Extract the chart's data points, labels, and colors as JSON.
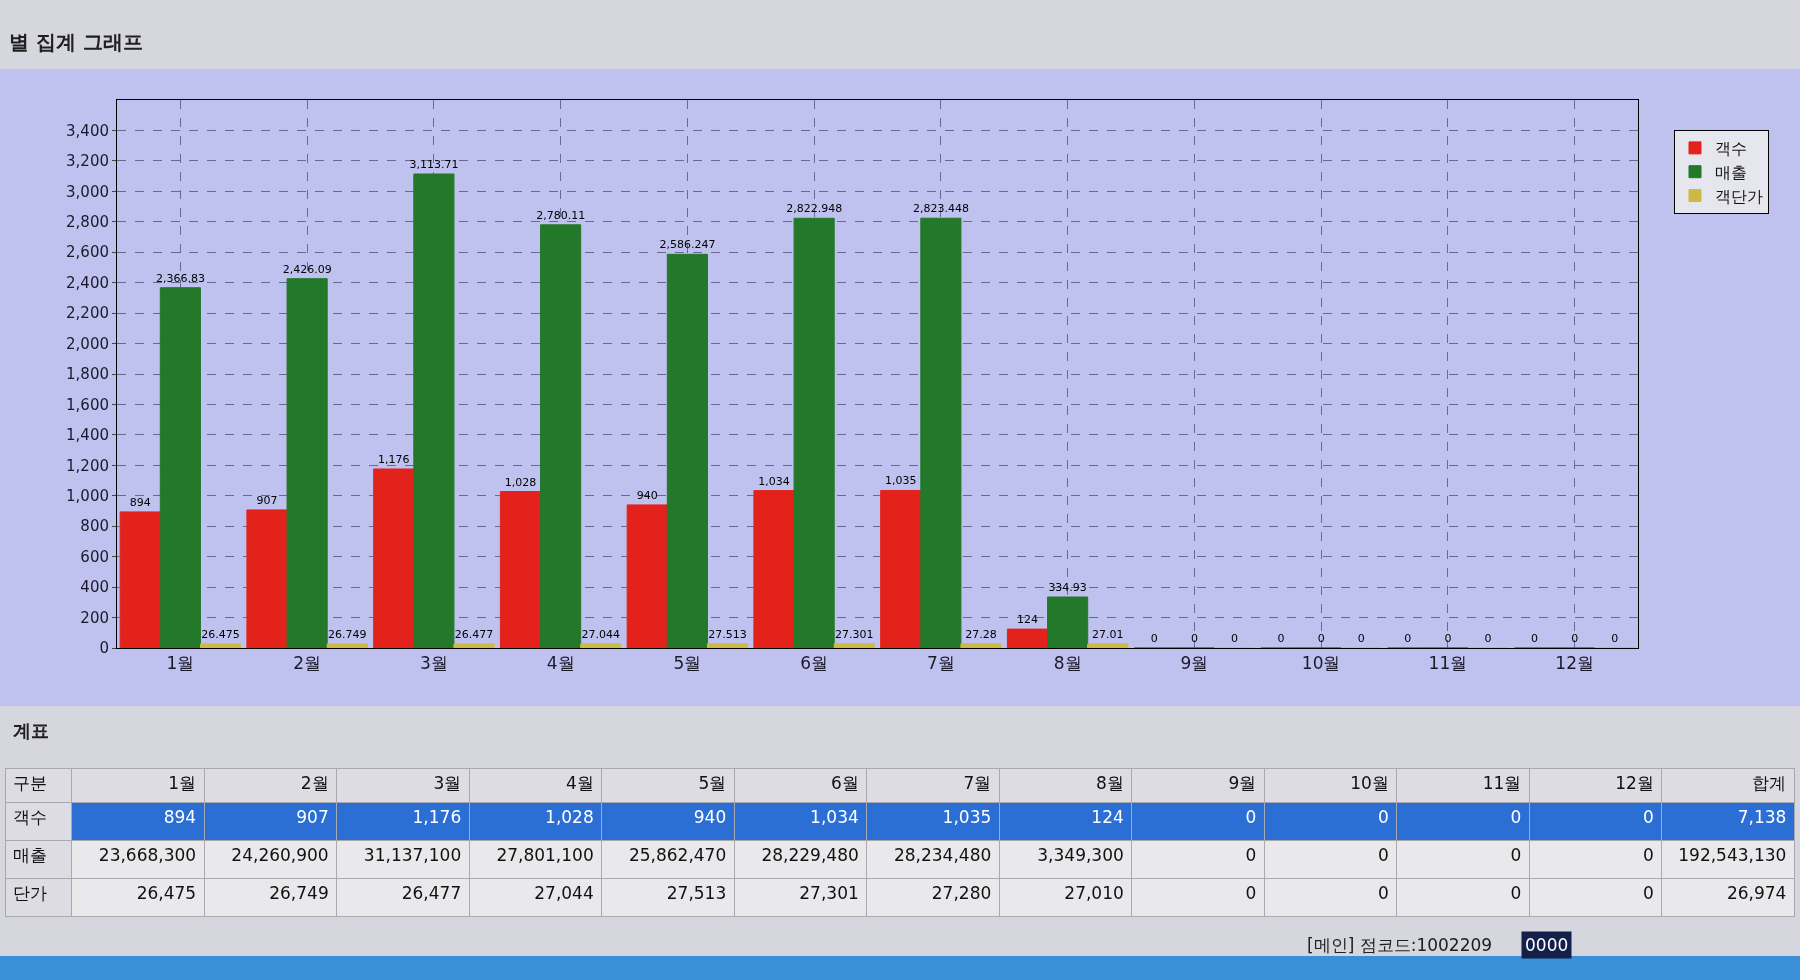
{
  "chart_data": [
    {
      "type": "bar",
      "title": "별 집계 그래프",
      "categories": [
        "1월",
        "2월",
        "3월",
        "4월",
        "5월",
        "6월",
        "7월",
        "8월",
        "9월",
        "10월",
        "11월",
        "12월"
      ],
      "series": [
        {
          "name": "객수",
          "color": "#e3221c",
          "values": [
            894,
            907,
            1176,
            1028,
            940,
            1034,
            1035,
            124,
            0,
            0,
            0,
            0
          ],
          "value_labels": [
            "894",
            "907",
            "1,176",
            "1,028",
            "940",
            "1,034",
            "1,035",
            "124",
            "0",
            "0",
            "0",
            "0"
          ]
        },
        {
          "name": "매출",
          "color": "#23782a",
          "values": [
            2366.83,
            2426.09,
            3113.71,
            2780.11,
            2586.247,
            2822.948,
            2823.448,
            334.93,
            0,
            0,
            0,
            0
          ],
          "value_labels": [
            "2,366.83",
            "2,426.09",
            "3,113.71",
            "2,780.11",
            "2,586.247",
            "2,822.948",
            "2,823.448",
            "334.93",
            "0",
            "0",
            "0",
            "0"
          ]
        },
        {
          "name": "객단가",
          "color": "#cbbb45",
          "values": [
            26.475,
            26.749,
            26.477,
            27.044,
            27.513,
            27.301,
            27.28,
            27.01,
            0,
            0,
            0,
            0
          ],
          "value_labels": [
            "26.475",
            "26.749",
            "26.477",
            "27.044",
            "27.513",
            "27.301",
            "27.28",
            "27.01",
            "0",
            "0",
            "0",
            "0"
          ]
        }
      ],
      "ylim": [
        0,
        3600
      ],
      "yticks": [
        0,
        200,
        400,
        600,
        800,
        {
          "value": 1000,
          "label": "1,000"
        },
        {
          "value": 1200,
          "label": "1,200"
        },
        {
          "value": 1400,
          "label": "1,400"
        },
        {
          "value": 1600,
          "label": "1,600"
        },
        {
          "value": 1800,
          "label": "1,800"
        },
        {
          "value": 2000,
          "label": "2,000"
        },
        {
          "value": 2200,
          "label": "2,200"
        },
        {
          "value": 2400,
          "label": "2,400"
        },
        {
          "value": 2600,
          "label": "2,600"
        },
        {
          "value": 2800,
          "label": "2,800"
        },
        {
          "value": 3000,
          "label": "3,000"
        },
        {
          "value": 3200,
          "label": "3,200"
        },
        {
          "value": 3400,
          "label": "3,400"
        }
      ],
      "grid": true,
      "legend": "top right"
    },
    {
      "type": "heatmap",
      "title": "계표",
      "ylabel": "구분",
      "categories": [
        "1월",
        "2월",
        "3월",
        "4월",
        "5월",
        "6월",
        "7월",
        "8월",
        "9월",
        "10월",
        "11월",
        "12월",
        "합계"
      ],
      "y_categories": [
        "객수",
        "매출",
        "단가"
      ],
      "cells": [
        [
          894,
          907,
          1176,
          1028,
          940,
          1034,
          1035,
          124,
          0,
          0,
          0,
          0,
          7138
        ],
        [
          23668300,
          24260900,
          31137100,
          27801100,
          25862470,
          28229480,
          28234480,
          3349300,
          0,
          0,
          0,
          0,
          192543130
        ],
        [
          26475,
          26749,
          26477,
          27044,
          27513,
          27301,
          27280,
          27010,
          0,
          0,
          0,
          0,
          26974
        ]
      ],
      "cell_labels": [
        [
          "894",
          "907",
          "1,176",
          "1,028",
          "940",
          "1,034",
          "1,035",
          "124",
          "0",
          "0",
          "0",
          "0",
          "7,138"
        ],
        [
          "23,668,300",
          "24,260,900",
          "31,137,100",
          "27,801,100",
          "25,862,470",
          "28,229,480",
          "28,234,480",
          "3,349,300",
          "0",
          "0",
          "0",
          "0",
          "192,543,130"
        ],
        [
          "26,475",
          "26,749",
          "26,477",
          "27,044",
          "27,513",
          "27,301",
          "27,280",
          "27,010",
          "0",
          "0",
          "0",
          "0",
          "26,974"
        ]
      ],
      "annotations": [
        "[메인] 점코드:1002209",
        "0000"
      ]
    }
  ]
}
